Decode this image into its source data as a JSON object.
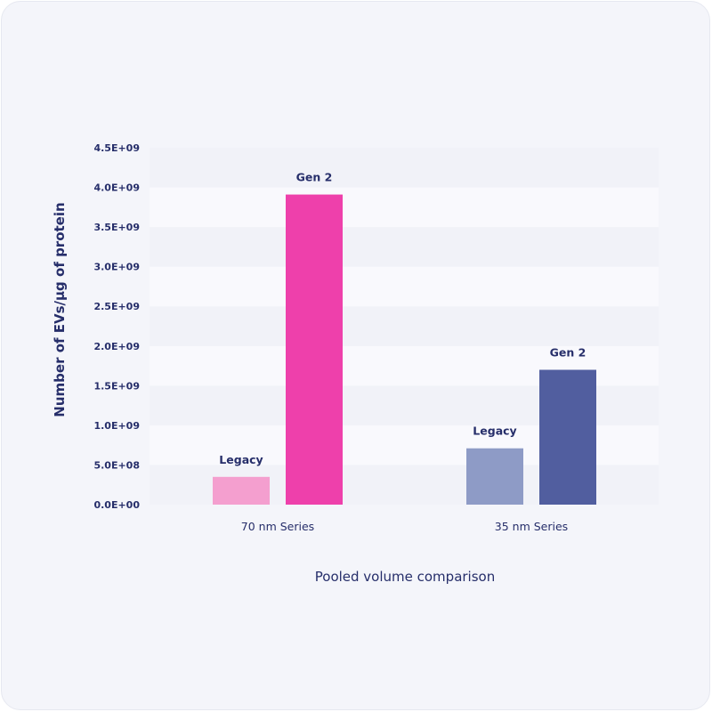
{
  "chart_data": {
    "type": "bar",
    "title": "",
    "xlabel": "Pooled volume comparison",
    "ylabel": "Number of EVs/µg of protein",
    "ylim": [
      0,
      4500000000
    ],
    "yticks": [
      0,
      500000000,
      1000000000,
      1500000000,
      2000000000,
      2500000000,
      3000000000,
      3500000000,
      4000000000,
      4500000000
    ],
    "ytick_labels": [
      "0.0E+00",
      "5.0E+08",
      "1.0E+09",
      "1.5E+09",
      "2.0E+09",
      "2.5E+09",
      "3.0E+09",
      "3.5E+09",
      "4.0E+09",
      "4.5E+09"
    ],
    "grid": false,
    "banded_background": true,
    "legend": "none",
    "categories": [
      "70 nm Series",
      "35 nm Series"
    ],
    "bars": [
      {
        "category": "70 nm Series",
        "label": "Legacy",
        "value": 350000000,
        "color": "#f49fcf"
      },
      {
        "category": "70 nm Series",
        "label": "Gen 2",
        "value": 3910000000,
        "color": "#ee40ab"
      },
      {
        "category": "35 nm Series",
        "label": "Legacy",
        "value": 710000000,
        "color": "#8e9bc6"
      },
      {
        "category": "35 nm Series",
        "label": "Gen 2",
        "value": 1700000000,
        "color": "#515e9f"
      }
    ]
  },
  "colors": {
    "background": "#f4f5fa",
    "band_light": "#f9f9fd",
    "band_dark": "#f1f2f8",
    "text": "#262e6a"
  }
}
